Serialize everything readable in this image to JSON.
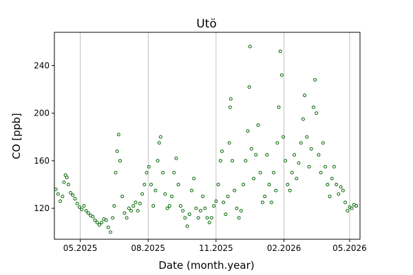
{
  "chart_data": {
    "type": "scatter",
    "title": "Utö",
    "xlabel": "Date (month.year)",
    "ylabel": "CO [ppb]",
    "x_type": "date",
    "xlim": [
      "2025-03-27",
      "2026-05-15"
    ],
    "ylim": [
      94,
      268
    ],
    "x_ticks": [
      {
        "date": "2025-05-01",
        "label": "05.2025"
      },
      {
        "date": "2025-08-01",
        "label": "08.2025"
      },
      {
        "date": "2025-11-01",
        "label": "11.2025"
      },
      {
        "date": "2026-02-01",
        "label": "02.2026"
      },
      {
        "date": "2026-05-01",
        "label": "05.2026"
      }
    ],
    "y_ticks": [
      120,
      160,
      200,
      240
    ],
    "grid": "vertical lines at x ticks",
    "marker": "open circle",
    "color": "#006400",
    "series": [
      {
        "points": [
          [
            "2025-03-29",
            136
          ],
          [
            "2025-04-01",
            132
          ],
          [
            "2025-04-04",
            126
          ],
          [
            "2025-04-07",
            130
          ],
          [
            "2025-04-09",
            142
          ],
          [
            "2025-04-11",
            148
          ],
          [
            "2025-04-13",
            146
          ],
          [
            "2025-04-15",
            140
          ],
          [
            "2025-04-18",
            133
          ],
          [
            "2025-04-21",
            131
          ],
          [
            "2025-04-24",
            128
          ],
          [
            "2025-04-27",
            124
          ],
          [
            "2025-04-30",
            121
          ],
          [
            "2025-05-03",
            119
          ],
          [
            "2025-05-06",
            122
          ],
          [
            "2025-05-09",
            118
          ],
          [
            "2025-05-12",
            116
          ],
          [
            "2025-05-15",
            114
          ],
          [
            "2025-05-18",
            113
          ],
          [
            "2025-05-21",
            110
          ],
          [
            "2025-05-24",
            108
          ],
          [
            "2025-05-27",
            106
          ],
          [
            "2025-05-30",
            108
          ],
          [
            "2025-06-02",
            111
          ],
          [
            "2025-06-05",
            110
          ],
          [
            "2025-06-08",
            104
          ],
          [
            "2025-06-11",
            100
          ],
          [
            "2025-06-14",
            112
          ],
          [
            "2025-06-16",
            122
          ],
          [
            "2025-06-18",
            150
          ],
          [
            "2025-06-20",
            168
          ],
          [
            "2025-06-22",
            182
          ],
          [
            "2025-06-24",
            160
          ],
          [
            "2025-06-27",
            130
          ],
          [
            "2025-06-30",
            116
          ],
          [
            "2025-07-03",
            112
          ],
          [
            "2025-07-06",
            120
          ],
          [
            "2025-07-09",
            118
          ],
          [
            "2025-07-12",
            122
          ],
          [
            "2025-07-15",
            125
          ],
          [
            "2025-07-18",
            118
          ],
          [
            "2025-07-21",
            124
          ],
          [
            "2025-07-24",
            132
          ],
          [
            "2025-07-27",
            140
          ],
          [
            "2025-07-30",
            150
          ],
          [
            "2025-08-02",
            155
          ],
          [
            "2025-08-05",
            140
          ],
          [
            "2025-08-08",
            122
          ],
          [
            "2025-08-11",
            135
          ],
          [
            "2025-08-14",
            160
          ],
          [
            "2025-08-16",
            175
          ],
          [
            "2025-08-18",
            180
          ],
          [
            "2025-08-21",
            150
          ],
          [
            "2025-08-24",
            132
          ],
          [
            "2025-08-27",
            120
          ],
          [
            "2025-08-30",
            122
          ],
          [
            "2025-09-02",
            130
          ],
          [
            "2025-09-05",
            150
          ],
          [
            "2025-09-08",
            162
          ],
          [
            "2025-09-11",
            140
          ],
          [
            "2025-09-14",
            122
          ],
          [
            "2025-09-17",
            118
          ],
          [
            "2025-09-20",
            112
          ],
          [
            "2025-09-23",
            105
          ],
          [
            "2025-09-26",
            115
          ],
          [
            "2025-09-29",
            135
          ],
          [
            "2025-10-02",
            145
          ],
          [
            "2025-10-05",
            120
          ],
          [
            "2025-10-08",
            112
          ],
          [
            "2025-10-11",
            118
          ],
          [
            "2025-10-14",
            130
          ],
          [
            "2025-10-17",
            120
          ],
          [
            "2025-10-20",
            112
          ],
          [
            "2025-10-23",
            108
          ],
          [
            "2025-10-26",
            112
          ],
          [
            "2025-10-29",
            122
          ],
          [
            "2025-11-01",
            126
          ],
          [
            "2025-11-04",
            140
          ],
          [
            "2025-11-07",
            160
          ],
          [
            "2025-11-09",
            168
          ],
          [
            "2025-11-11",
            125
          ],
          [
            "2025-11-14",
            115
          ],
          [
            "2025-11-17",
            130
          ],
          [
            "2025-11-19",
            175
          ],
          [
            "2025-11-20",
            205
          ],
          [
            "2025-11-21",
            212
          ],
          [
            "2025-11-23",
            160
          ],
          [
            "2025-11-26",
            135
          ],
          [
            "2025-11-29",
            120
          ],
          [
            "2025-12-02",
            112
          ],
          [
            "2025-12-05",
            118
          ],
          [
            "2025-12-08",
            140
          ],
          [
            "2025-12-11",
            160
          ],
          [
            "2025-12-14",
            185
          ],
          [
            "2025-12-16",
            222
          ],
          [
            "2025-12-17",
            256
          ],
          [
            "2025-12-19",
            170
          ],
          [
            "2025-12-22",
            145
          ],
          [
            "2025-12-25",
            165
          ],
          [
            "2025-12-28",
            190
          ],
          [
            "2025-12-31",
            150
          ],
          [
            "2026-01-03",
            125
          ],
          [
            "2026-01-06",
            130
          ],
          [
            "2026-01-09",
            165
          ],
          [
            "2026-01-12",
            140
          ],
          [
            "2026-01-15",
            125
          ],
          [
            "2026-01-18",
            150
          ],
          [
            "2026-01-21",
            135
          ],
          [
            "2026-01-23",
            175
          ],
          [
            "2026-01-25",
            205
          ],
          [
            "2026-01-27",
            252
          ],
          [
            "2026-01-29",
            232
          ],
          [
            "2026-01-31",
            180
          ],
          [
            "2026-02-03",
            160
          ],
          [
            "2026-02-06",
            140
          ],
          [
            "2026-02-09",
            135
          ],
          [
            "2026-02-12",
            150
          ],
          [
            "2026-02-15",
            165
          ],
          [
            "2026-02-18",
            145
          ],
          [
            "2026-02-21",
            158
          ],
          [
            "2026-02-24",
            175
          ],
          [
            "2026-02-27",
            195
          ],
          [
            "2026-03-01",
            215
          ],
          [
            "2026-03-04",
            180
          ],
          [
            "2026-03-07",
            155
          ],
          [
            "2026-03-10",
            170
          ],
          [
            "2026-03-13",
            205
          ],
          [
            "2026-03-15",
            228
          ],
          [
            "2026-03-17",
            200
          ],
          [
            "2026-03-20",
            165
          ],
          [
            "2026-03-23",
            150
          ],
          [
            "2026-03-26",
            175
          ],
          [
            "2026-03-29",
            155
          ],
          [
            "2026-04-01",
            140
          ],
          [
            "2026-04-04",
            130
          ],
          [
            "2026-04-07",
            145
          ],
          [
            "2026-04-10",
            155
          ],
          [
            "2026-04-13",
            140
          ],
          [
            "2026-04-16",
            132
          ],
          [
            "2026-04-19",
            138
          ],
          [
            "2026-04-22",
            135
          ],
          [
            "2026-04-25",
            125
          ],
          [
            "2026-04-28",
            118
          ],
          [
            "2026-05-01",
            121
          ],
          [
            "2026-05-04",
            120
          ],
          [
            "2026-05-07",
            123
          ],
          [
            "2026-05-10",
            122
          ]
        ]
      }
    ]
  }
}
